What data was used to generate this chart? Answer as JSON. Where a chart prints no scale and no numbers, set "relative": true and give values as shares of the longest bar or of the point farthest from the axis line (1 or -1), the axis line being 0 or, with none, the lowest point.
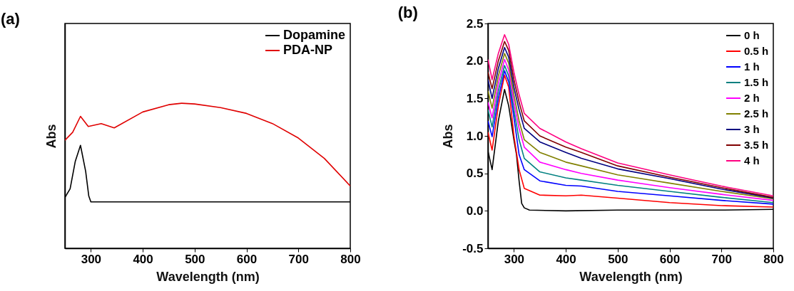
{
  "chart_data": [
    {
      "type": "line",
      "title": "(a)",
      "xlabel": "Wavelength (nm)",
      "ylabel": "Abs",
      "relative": true,
      "tick_labels": "x",
      "legend": "top right",
      "xlim": [
        250,
        800
      ],
      "xticks": [
        300,
        400,
        500,
        600,
        700,
        800
      ],
      "series": [
        {
          "name": "Dopamine",
          "color": "#000000",
          "x": [
            250,
            260,
            270,
            280,
            290,
            296,
            300,
            400,
            500,
            600,
            700,
            800
          ],
          "values": [
            0.35,
            0.41,
            0.6,
            0.71,
            0.53,
            0.36,
            0.32,
            0.32,
            0.32,
            0.32,
            0.32,
            0.32
          ]
        },
        {
          "name": "PDA-NP",
          "color": "#e00000",
          "x": [
            250,
            265,
            280,
            295,
            320,
            345,
            400,
            450,
            475,
            500,
            550,
            600,
            650,
            700,
            750,
            800
          ],
          "values": [
            0.745,
            0.8,
            0.91,
            0.84,
            0.86,
            0.83,
            0.94,
            0.99,
            1.0,
            0.995,
            0.97,
            0.93,
            0.86,
            0.76,
            0.62,
            0.43
          ]
        }
      ]
    },
    {
      "type": "line",
      "title": "(b)",
      "xlabel": "Wavelength (nm)",
      "ylabel": "Abs",
      "legend": "top right",
      "xlim": [
        250,
        800
      ],
      "xticks": [
        300,
        400,
        500,
        600,
        700,
        800
      ],
      "ylim": [
        -0.5,
        2.5
      ],
      "yticks": [
        {
          "value": -0.5,
          "label": "-0.5"
        },
        {
          "value": 0,
          "label": "0.0"
        },
        0.5,
        {
          "value": 1,
          "label": "1.0"
        },
        1.5,
        {
          "value": 2,
          "label": "2.0"
        },
        2.5
      ],
      "x": [
        250,
        258,
        270,
        282,
        290,
        300,
        310,
        320,
        350,
        400,
        430,
        500,
        600,
        700,
        800
      ],
      "series": [
        {
          "name": "0 h",
          "color": "#000000",
          "x": [
            250,
            258,
            270,
            282,
            290,
            300,
            305,
            310,
            315,
            320,
            330,
            400,
            500,
            600,
            700,
            800
          ],
          "values": [
            0.8,
            0.55,
            1.2,
            1.62,
            1.4,
            0.95,
            0.75,
            0.4,
            0.1,
            0.04,
            0.01,
            0.0,
            0.01,
            0.01,
            0.01,
            0.02
          ]
        },
        {
          "name": "0.5 h",
          "color": "#ff0000",
          "values": [
            1.05,
            0.81,
            1.4,
            1.81,
            1.65,
            1.0,
            0.55,
            0.3,
            0.21,
            0.2,
            0.21,
            0.17,
            0.11,
            0.07,
            0.05
          ]
        },
        {
          "name": "1 h",
          "color": "#0000ff",
          "values": [
            1.2,
            0.99,
            1.5,
            1.87,
            1.72,
            1.25,
            0.75,
            0.55,
            0.4,
            0.34,
            0.33,
            0.26,
            0.2,
            0.14,
            0.09
          ]
        },
        {
          "name": "1.5 h",
          "color": "#008080",
          "values": [
            1.35,
            1.12,
            1.6,
            1.94,
            1.8,
            1.35,
            0.95,
            0.7,
            0.52,
            0.44,
            0.41,
            0.34,
            0.26,
            0.18,
            0.11
          ]
        },
        {
          "name": "2 h",
          "color": "#ff00ff",
          "values": [
            1.45,
            1.24,
            1.7,
            2.02,
            1.88,
            1.45,
            1.1,
            0.85,
            0.65,
            0.55,
            0.5,
            0.41,
            0.31,
            0.22,
            0.14
          ]
        },
        {
          "name": "2.5 h",
          "color": "#808000",
          "values": [
            1.6,
            1.37,
            1.8,
            2.1,
            1.97,
            1.55,
            1.2,
            0.95,
            0.78,
            0.65,
            0.6,
            0.48,
            0.37,
            0.26,
            0.16
          ]
        },
        {
          "name": "3 h",
          "color": "#000080",
          "values": [
            1.75,
            1.5,
            1.9,
            2.18,
            2.05,
            1.65,
            1.35,
            1.1,
            0.92,
            0.78,
            0.7,
            0.56,
            0.43,
            0.29,
            0.17
          ]
        },
        {
          "name": "3.5 h",
          "color": "#800000",
          "values": [
            1.85,
            1.63,
            2.0,
            2.26,
            2.14,
            1.75,
            1.45,
            1.2,
            1.0,
            0.85,
            0.78,
            0.6,
            0.45,
            0.31,
            0.18
          ]
        },
        {
          "name": "4 h",
          "color": "#ff0080",
          "values": [
            2.02,
            1.75,
            2.1,
            2.35,
            2.22,
            1.85,
            1.55,
            1.3,
            1.1,
            0.92,
            0.83,
            0.64,
            0.48,
            0.33,
            0.2
          ]
        }
      ]
    }
  ]
}
